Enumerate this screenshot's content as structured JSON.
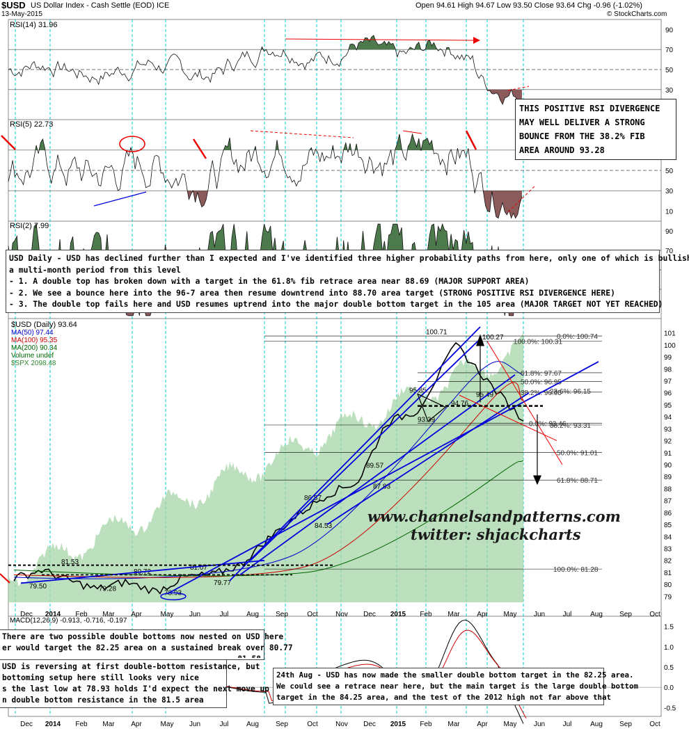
{
  "header": {
    "ticker": "$USD",
    "name": "US Dollar Index - Cash Settle (EOD) ICE",
    "date": "13-May-2015",
    "ohlc": "Open 94.61  High 94.67  Low 93.50  Close 93.64  Chg -0.96 (-1.02%)",
    "credit": "© StockCharts.com"
  },
  "panels": {
    "rsi14_label": "RSI(14) 31.96",
    "rsi5_label": "RSI(5) 22.73",
    "rsi2_label": "RSI(2) 7.99",
    "rsi_ticks": [
      "90",
      "70",
      "50",
      "30"
    ],
    "rsi5_ticks": [
      "50",
      "30",
      "10"
    ],
    "macd_label": "MACD(12,26,9) -0.913, -0.716, -0.197",
    "macd_ticks": [
      "1.5",
      "1.0",
      "0.5",
      "0.0",
      "-0.5"
    ]
  },
  "price_legend": {
    "title": "$USD (Daily) 93.64",
    "ma50": "MA(50) 97.44",
    "ma100": "MA(100) 95.35",
    "ma200": "MA(200) 90.34",
    "volume": "Volume undef",
    "spx": "$SPX 2098.48"
  },
  "x_months": [
    "Dec",
    "2014",
    "Feb",
    "Mar",
    "Apr",
    "May",
    "Jun",
    "Jul",
    "Aug",
    "Sep",
    "Oct",
    "Nov",
    "Dec",
    "2015",
    "Feb",
    "Mar",
    "Apr",
    "May",
    "Jun",
    "Jul",
    "Aug",
    "Sep",
    "Oct"
  ],
  "y_ticks": [
    "101",
    "100",
    "99",
    "98",
    "97",
    "96",
    "95",
    "94",
    "93",
    "92",
    "91",
    "90",
    "89",
    "88",
    "87",
    "86",
    "85",
    "84",
    "83",
    "82",
    "81",
    "80",
    "79"
  ],
  "price_labels": [
    "100.71",
    "100.27",
    "95.85",
    "95.49",
    "94.76",
    "93.39",
    "89.57",
    "87.83",
    "86.87",
    "84.53",
    "81.53",
    "80.72",
    "81.07",
    "79.77",
    "78.93",
    "79.28",
    "79.50"
  ],
  "fib_labels": [
    "0.0%: 100.74",
    "100.0%: 100.31",
    "61.8%: 97.67",
    "50.0%: 96.95",
    "38.2%: 96.05",
    "23.6%: 96.15",
    "0.0%: 93.46",
    "38.2%: 93.31",
    "50.0%: 91.01",
    "61.8%: 88.71",
    "100.0%: 81.28"
  ],
  "annotations": {
    "rsi_box": [
      "THIS POSITIVE RSI DIVERGENCE",
      "MAY WELL DELIVER A STRONG",
      "BOUNCE FROM THE 38.2% FIB",
      "AREA AROUND 93.28"
    ],
    "main_box": [
      "USD Daily - USD has declined further than I expected and I've identified three higher probability paths from here, only one of which is bullish over",
      "a multi-month period from this level",
      "- 1. A double top has broken down with a target in the 61.8% fib retrace area near 88.69 (MAJOR SUPPORT AREA)",
      "- 2. We see a bounce here into the 96-7 area then resume downtrend into 88.70 area target (STRONG POSITIVE RSI DIVERGENCE HERE)",
      "- 3. The double top fails here and USD resumes uptrend into the major double bottom target in the 105 area (MAJOR TARGET NOT YET REACHED)"
    ],
    "left_box_1": [
      "There are two possible double bottoms now nested on USD here",
      "er would target the 82.25 area on a sustained break over 80.77"
    ],
    "left_box_1_hidden": "... 81.58",
    "left_box_2": [
      "USD is reversing at first double-bottom resistance, but",
      "bottoming setup here still looks very nice",
      "s the last low at 78.93 holds I'd expect the next move up",
      "n double bottom resistance in the 81.5 area"
    ],
    "right_box": [
      "24th Aug - USD has now made the smaller double bottom target in the 82.25 area.",
      "We could see a retrace near here, but the main target is the large double bottom",
      "target in the 84.25 area, and the test of the 2012 high not far above that"
    ]
  },
  "watermark": {
    "site": "www.channelsandpatterns.com",
    "twitter": "twitter: shjackcharts"
  },
  "colors": {
    "ma50": "#0000cc",
    "ma100": "#cc0000",
    "ma200": "#006600",
    "spx_fill": "#a5d6a7",
    "rsi_fill": "#4d7a4d",
    "trend": "#0000dd",
    "annotation": "#ee0000",
    "grid_dash": "#00cccc"
  },
  "chart_data": {
    "type": "line",
    "title": "$USD (Daily) 93.64",
    "series": [
      {
        "name": "$USD",
        "x": [
          "Dec 2013",
          "Jan 2014",
          "Feb",
          "Mar",
          "Apr",
          "May",
          "Jun",
          "Jul",
          "Aug",
          "Sep",
          "Oct",
          "Nov",
          "Dec",
          "Jan 2015",
          "Feb",
          "Mar",
          "Apr",
          "May"
        ],
        "values": [
          80.5,
          81.2,
          80.3,
          79.6,
          80.2,
          79.4,
          80.6,
          80.8,
          81.6,
          83.8,
          85.9,
          87.5,
          88.6,
          93.5,
          94.5,
          100.0,
          97.0,
          93.64
        ]
      },
      {
        "name": "MA(50)",
        "values": [
          97.44
        ]
      },
      {
        "name": "MA(100)",
        "values": [
          95.35
        ]
      },
      {
        "name": "MA(200)",
        "values": [
          90.34
        ]
      }
    ],
    "ylim": [
      78.5,
      101.5
    ]
  }
}
